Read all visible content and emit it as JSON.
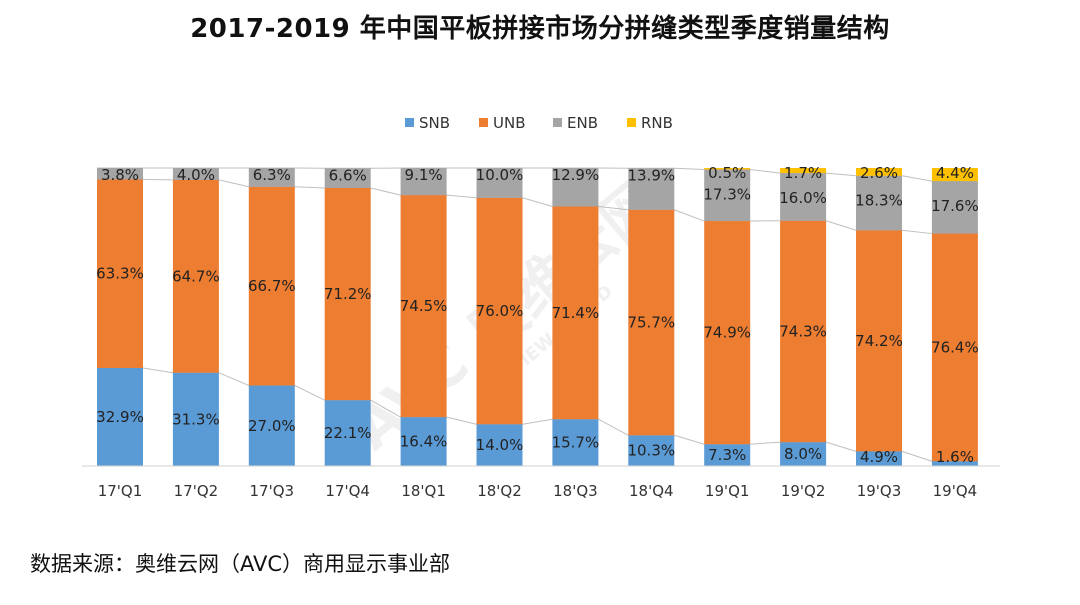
{
  "title": "2017-2019 年中国平板拼接市场分拼缝类型季度销量结构",
  "source": "数据来源：奥维云网（AVC）商用显示事业部",
  "watermark": {
    "brand": "AVC 奥维云网",
    "tagline": "ALL VIEW CLOUD"
  },
  "chart_data": {
    "type": "bar",
    "stacked": true,
    "percent_stacked": true,
    "categories": [
      "17'Q1",
      "17'Q2",
      "17'Q3",
      "17'Q4",
      "18'Q1",
      "18'Q2",
      "18'Q3",
      "18'Q4",
      "19'Q1",
      "19'Q2",
      "19'Q3",
      "19'Q4"
    ],
    "series": [
      {
        "name": "SNB",
        "color": "#5b9bd5",
        "values": [
          32.9,
          31.3,
          27.0,
          22.1,
          16.4,
          14.0,
          15.7,
          10.3,
          7.3,
          8.0,
          4.9,
          1.6
        ],
        "labels": [
          "32.9%",
          "31.3%",
          "27.0%",
          "22.1%",
          "16.4%",
          "14.0%",
          "15.7%",
          "10.3%",
          "7.3%",
          "8.0%",
          "4.9%",
          "1.6%"
        ]
      },
      {
        "name": "UNB",
        "color": "#ed7d31",
        "values": [
          63.3,
          64.7,
          66.7,
          71.2,
          74.5,
          76.0,
          71.4,
          75.7,
          74.9,
          74.3,
          74.2,
          76.4
        ],
        "labels": [
          "63.3%",
          "64.7%",
          "66.7%",
          "71.2%",
          "74.5%",
          "76.0%",
          "71.4%",
          "75.7%",
          "74.9%",
          "74.3%",
          "74.2%",
          "76.4%"
        ]
      },
      {
        "name": "ENB",
        "color": "#a5a5a5",
        "values": [
          3.8,
          4.0,
          6.3,
          6.6,
          9.1,
          10.0,
          12.9,
          13.9,
          17.3,
          16.0,
          18.3,
          17.6
        ],
        "labels": [
          "3.8%",
          "4.0%",
          "6.3%",
          "6.6%",
          "9.1%",
          "10.0%",
          "12.9%",
          "13.9%",
          "17.3%",
          "16.0%",
          "18.3%",
          "17.6%"
        ]
      },
      {
        "name": "RNB",
        "color": "#ffc000",
        "values": [
          0,
          0,
          0,
          0,
          0,
          0,
          0,
          0,
          0.5,
          1.7,
          2.6,
          4.4
        ],
        "labels": [
          "",
          "",
          "",
          "",
          "",
          "",
          "",
          "",
          "0.5%",
          "1.7%",
          "2.6%",
          "4.4%"
        ]
      }
    ],
    "ylim": [
      0,
      100
    ],
    "legend": "top",
    "grid": false,
    "series_lines": true
  }
}
